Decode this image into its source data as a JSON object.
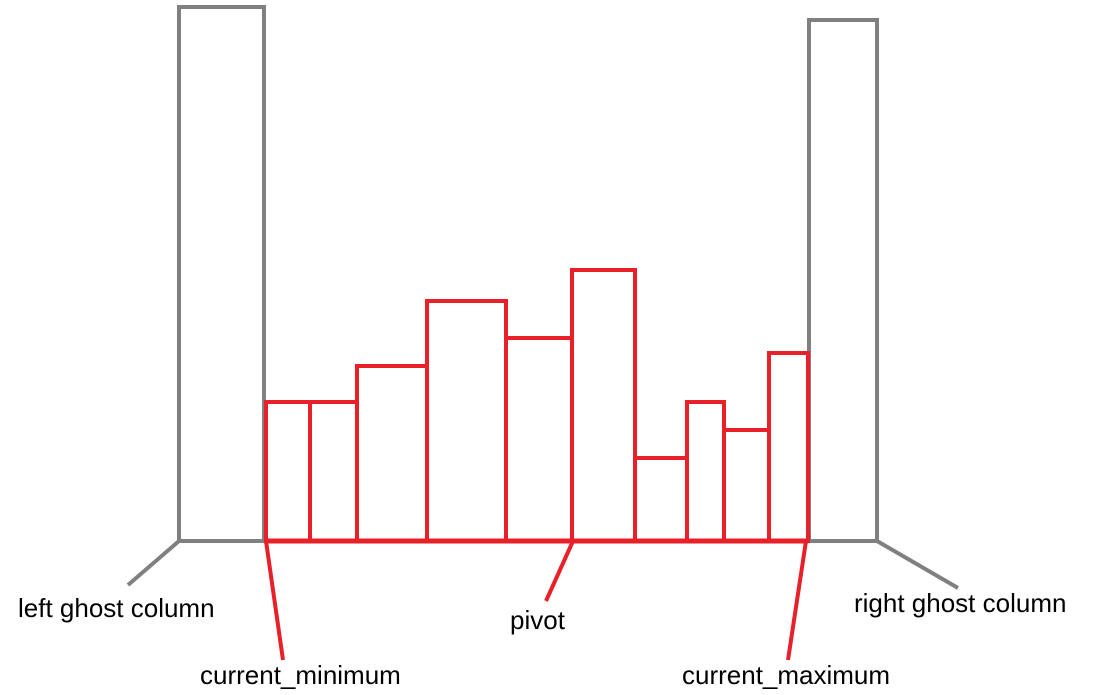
{
  "colors": {
    "ghost": "#808080",
    "bars": "#e8202a",
    "text": "#000000"
  },
  "labels": {
    "left_ghost": "left ghost column",
    "right_ghost": "right ghost column",
    "current_minimum": "current_minimum",
    "pivot": "pivot",
    "current_maximum": "current_maximum"
  }
}
